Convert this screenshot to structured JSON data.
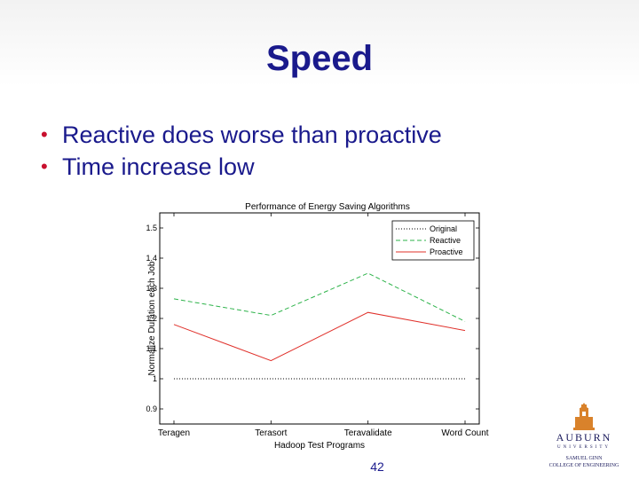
{
  "slide": {
    "title": "Speed",
    "bullets": [
      "Reactive does worse than proactive",
      "Time increase low"
    ],
    "page_number": "42",
    "logo": {
      "name": "AUBURN",
      "subtitle": "UNIVERSITY",
      "college_line1": "SAMUEL GINN",
      "college_line2": "COLLEGE OF ENGINEERING"
    }
  },
  "colors": {
    "title": "#1a1a8c",
    "bullet": "#c8102e",
    "original": "#000000",
    "reactive": "#2db34a",
    "proactive": "#e0302a"
  },
  "chart_data": {
    "type": "line",
    "title": "Performance of Energy Saving Algorithms",
    "xlabel": "Hadoop Test Programs",
    "ylabel": "Normalize Duration each Job",
    "categories": [
      "Teragen",
      "Terasort",
      "Teravalidate",
      "Word Count"
    ],
    "ylim": [
      0.85,
      1.55
    ],
    "yticks": [
      0.9,
      1,
      1.1,
      1.2,
      1.3,
      1.4,
      1.5
    ],
    "ytick_labels": [
      "0.9",
      "1",
      "1.1",
      "1.2",
      "1.3",
      "1.4",
      "1.5"
    ],
    "legend_position": "top-right",
    "series": [
      {
        "name": "Original",
        "values": [
          1.0,
          1.0,
          1.0,
          1.0
        ],
        "style": "dotted",
        "color": "#000000"
      },
      {
        "name": "Reactive",
        "values": [
          1.265,
          1.21,
          1.35,
          1.19
        ],
        "style": "dashed",
        "color": "#2db34a"
      },
      {
        "name": "Proactive",
        "values": [
          1.18,
          1.06,
          1.22,
          1.16
        ],
        "style": "solid",
        "color": "#e0302a"
      }
    ]
  }
}
